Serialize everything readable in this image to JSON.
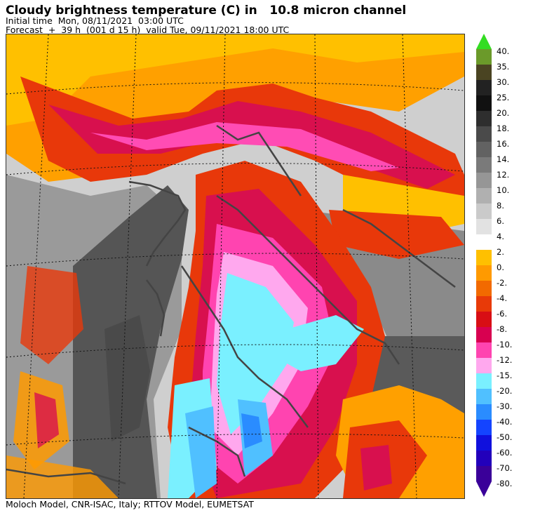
{
  "header": {
    "title": "Cloudy brightness temperature (C) in   10.8 micron channel",
    "initial_time": "Initial time  Mon, 08/11/2021  03:00 UTC",
    "forecast": "Forecast  +  39 h  (001 d 15 h)  valid Tue, 09/11/2021 18:00 UTC"
  },
  "footer": "Moloch Model, CNR-ISAC, Italy; RTTOV Model, EUMETSAT",
  "legend": {
    "upper": [
      {
        "label": "40.",
        "color": "#33dd22"
      },
      {
        "label": "35.",
        "color": "#6b9a2a"
      },
      {
        "label": "30.",
        "color": "#4a4422"
      },
      {
        "label": "25.",
        "color": "#222222"
      },
      {
        "label": "20.",
        "color": "#111111"
      },
      {
        "label": "18.",
        "color": "#2e2e2e"
      },
      {
        "label": "16.",
        "color": "#4a4a4a"
      },
      {
        "label": "14.",
        "color": "#626262"
      },
      {
        "label": "12.",
        "color": "#7a7a7a"
      },
      {
        "label": "10.",
        "color": "#969696"
      },
      {
        "label": "8.",
        "color": "#b0b0b0"
      },
      {
        "label": "6.",
        "color": "#cacaca"
      },
      {
        "label": "4.",
        "color": "#e2e2e2"
      }
    ],
    "lower": [
      {
        "label": "2.",
        "color": "#ffc000"
      },
      {
        "label": "0.",
        "color": "#ff9a00"
      },
      {
        "label": "-2.",
        "color": "#f26a00"
      },
      {
        "label": "-4.",
        "color": "#e83a08"
      },
      {
        "label": "-6.",
        "color": "#d80e14"
      },
      {
        "label": "-8.",
        "color": "#d80050"
      },
      {
        "label": "-10.",
        "color": "#ff44b0"
      },
      {
        "label": "-12.",
        "color": "#ffa8ee"
      },
      {
        "label": "-15.",
        "color": "#7af0ff"
      },
      {
        "label": "-20.",
        "color": "#50c0ff"
      },
      {
        "label": "-30.",
        "color": "#2a8cff"
      },
      {
        "label": "-40.",
        "color": "#1444ff"
      },
      {
        "label": "-50.",
        "color": "#1010dd"
      },
      {
        "label": "-60.",
        "color": "#2200bb"
      },
      {
        "label": "-70.",
        "color": "#3a0099"
      },
      {
        "label": "-80.",
        "color": "#3a0099"
      }
    ]
  }
}
